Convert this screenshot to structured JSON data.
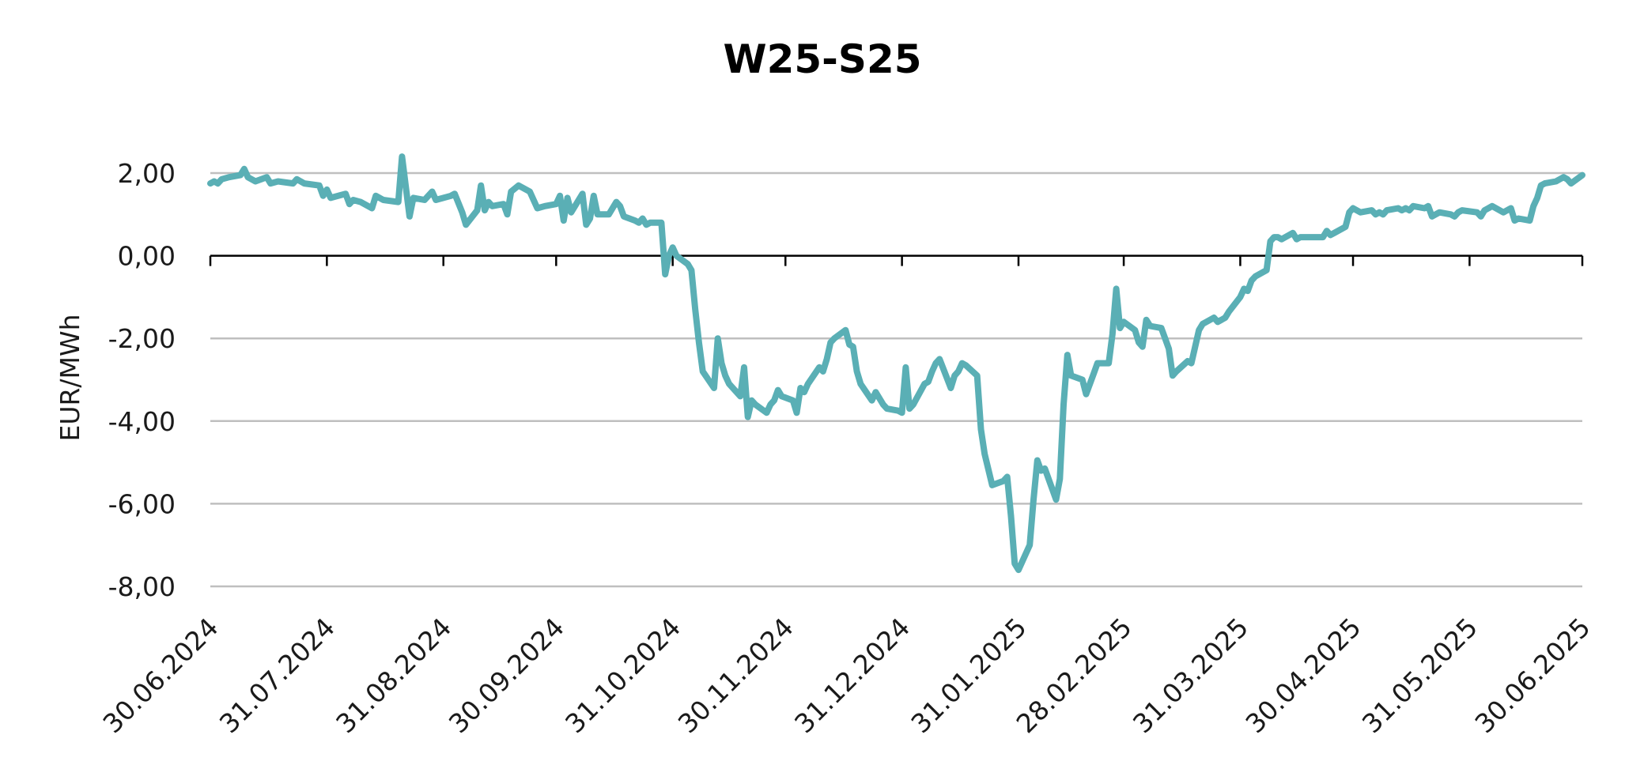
{
  "chart_data": {
    "type": "line",
    "title": "W25-S25",
    "ylabel": "EUR/MWh",
    "xlabel": "",
    "ylim": [
      -8,
      2
    ],
    "y_ticks": [
      {
        "value": 2,
        "label": "2,00"
      },
      {
        "value": 0,
        "label": "0,00"
      },
      {
        "value": -2,
        "label": "-2,00"
      },
      {
        "value": -4,
        "label": "-4,00"
      },
      {
        "value": -6,
        "label": "-6,00"
      },
      {
        "value": -8,
        "label": "-8,00"
      }
    ],
    "xlim": [
      "2024-06-30",
      "2025-06-30"
    ],
    "x_ticks": [
      {
        "value": "2024-06-30",
        "label": "30.06.2024"
      },
      {
        "value": "2024-07-31",
        "label": "31.07.2024"
      },
      {
        "value": "2024-08-31",
        "label": "31.08.2024"
      },
      {
        "value": "2024-09-30",
        "label": "30.09.2024"
      },
      {
        "value": "2024-10-31",
        "label": "31.10.2024"
      },
      {
        "value": "2024-11-30",
        "label": "30.11.2024"
      },
      {
        "value": "2024-12-31",
        "label": "31.12.2024"
      },
      {
        "value": "2025-01-31",
        "label": "31.01.2025"
      },
      {
        "value": "2025-02-28",
        "label": "28.02.2025"
      },
      {
        "value": "2025-03-31",
        "label": "31.03.2025"
      },
      {
        "value": "2025-04-30",
        "label": "30.04.2025"
      },
      {
        "value": "2025-05-31",
        "label": "31.05.2025"
      },
      {
        "value": "2025-06-30",
        "label": "30.06.2025"
      }
    ],
    "grid": true,
    "series": [
      {
        "color": "#5aafb5",
        "points": [
          [
            "2024-06-30",
            1.75
          ],
          [
            "2024-07-01",
            1.8
          ],
          [
            "2024-07-02",
            1.75
          ],
          [
            "2024-07-03",
            1.85
          ],
          [
            "2024-07-05",
            1.9
          ],
          [
            "2024-07-08",
            1.95
          ],
          [
            "2024-07-09",
            2.1
          ],
          [
            "2024-07-10",
            1.9
          ],
          [
            "2024-07-12",
            1.8
          ],
          [
            "2024-07-15",
            1.9
          ],
          [
            "2024-07-16",
            1.75
          ],
          [
            "2024-07-18",
            1.8
          ],
          [
            "2024-07-22",
            1.75
          ],
          [
            "2024-07-23",
            1.85
          ],
          [
            "2024-07-25",
            1.75
          ],
          [
            "2024-07-29",
            1.7
          ],
          [
            "2024-07-30",
            1.45
          ],
          [
            "2024-07-31",
            1.6
          ],
          [
            "2024-08-01",
            1.4
          ],
          [
            "2024-08-05",
            1.5
          ],
          [
            "2024-08-06",
            1.25
          ],
          [
            "2024-08-07",
            1.35
          ],
          [
            "2024-08-09",
            1.3
          ],
          [
            "2024-08-12",
            1.15
          ],
          [
            "2024-08-13",
            1.45
          ],
          [
            "2024-08-15",
            1.35
          ],
          [
            "2024-08-19",
            1.3
          ],
          [
            "2024-08-20",
            2.4
          ],
          [
            "2024-08-22",
            0.95
          ],
          [
            "2024-08-23",
            1.4
          ],
          [
            "2024-08-26",
            1.35
          ],
          [
            "2024-08-28",
            1.55
          ],
          [
            "2024-08-29",
            1.35
          ],
          [
            "2024-09-02",
            1.45
          ],
          [
            "2024-09-03",
            1.5
          ],
          [
            "2024-09-05",
            1.05
          ],
          [
            "2024-09-06",
            0.75
          ],
          [
            "2024-09-09",
            1.1
          ],
          [
            "2024-09-10",
            1.7
          ],
          [
            "2024-09-11",
            1.1
          ],
          [
            "2024-09-12",
            1.3
          ],
          [
            "2024-09-13",
            1.2
          ],
          [
            "2024-09-16",
            1.25
          ],
          [
            "2024-09-17",
            1.0
          ],
          [
            "2024-09-18",
            1.55
          ],
          [
            "2024-09-20",
            1.7
          ],
          [
            "2024-09-23",
            1.55
          ],
          [
            "2024-09-25",
            1.15
          ],
          [
            "2024-09-27",
            1.2
          ],
          [
            "2024-09-30",
            1.25
          ],
          [
            "2024-10-01",
            1.45
          ],
          [
            "2024-10-02",
            0.85
          ],
          [
            "2024-10-03",
            1.4
          ],
          [
            "2024-10-04",
            1.05
          ],
          [
            "2024-10-07",
            1.5
          ],
          [
            "2024-10-08",
            0.75
          ],
          [
            "2024-10-09",
            0.9
          ],
          [
            "2024-10-10",
            1.45
          ],
          [
            "2024-10-11",
            1.0
          ],
          [
            "2024-10-14",
            1.0
          ],
          [
            "2024-10-16",
            1.3
          ],
          [
            "2024-10-17",
            1.2
          ],
          [
            "2024-10-18",
            0.95
          ],
          [
            "2024-10-21",
            0.85
          ],
          [
            "2024-10-22",
            0.8
          ],
          [
            "2024-10-23",
            0.9
          ],
          [
            "2024-10-24",
            0.75
          ],
          [
            "2024-10-25",
            0.8
          ],
          [
            "2024-10-28",
            0.8
          ],
          [
            "2024-10-29",
            -0.45
          ],
          [
            "2024-10-30",
            0.0
          ],
          [
            "2024-10-31",
            0.2
          ],
          [
            "2024-11-01",
            0.0
          ],
          [
            "2024-11-04",
            -0.2
          ],
          [
            "2024-11-05",
            -0.35
          ],
          [
            "2024-11-06",
            -1.3
          ],
          [
            "2024-11-07",
            -2.1
          ],
          [
            "2024-11-08",
            -2.8
          ],
          [
            "2024-11-11",
            -3.2
          ],
          [
            "2024-11-12",
            -2.0
          ],
          [
            "2024-11-13",
            -2.6
          ],
          [
            "2024-11-14",
            -2.9
          ],
          [
            "2024-11-15",
            -3.1
          ],
          [
            "2024-11-18",
            -3.4
          ],
          [
            "2024-11-19",
            -2.7
          ],
          [
            "2024-11-20",
            -3.9
          ],
          [
            "2024-11-21",
            -3.5
          ],
          [
            "2024-11-22",
            -3.6
          ],
          [
            "2024-11-25",
            -3.8
          ],
          [
            "2024-11-26",
            -3.6
          ],
          [
            "2024-11-27",
            -3.5
          ],
          [
            "2024-11-28",
            -3.25
          ],
          [
            "2024-11-29",
            -3.4
          ],
          [
            "2024-12-02",
            -3.5
          ],
          [
            "2024-12-03",
            -3.8
          ],
          [
            "2024-12-04",
            -3.2
          ],
          [
            "2024-12-05",
            -3.3
          ],
          [
            "2024-12-06",
            -3.1
          ],
          [
            "2024-12-09",
            -2.7
          ],
          [
            "2024-12-10",
            -2.8
          ],
          [
            "2024-12-11",
            -2.5
          ],
          [
            "2024-12-12",
            -2.1
          ],
          [
            "2024-12-13",
            -2.0
          ],
          [
            "2024-12-16",
            -1.8
          ],
          [
            "2024-12-17",
            -2.15
          ],
          [
            "2024-12-18",
            -2.2
          ],
          [
            "2024-12-19",
            -2.8
          ],
          [
            "2024-12-20",
            -3.1
          ],
          [
            "2024-12-23",
            -3.5
          ],
          [
            "2024-12-24",
            -3.3
          ],
          [
            "2024-12-26",
            -3.6
          ],
          [
            "2024-12-27",
            -3.7
          ],
          [
            "2024-12-30",
            -3.75
          ],
          [
            "2024-12-31",
            -3.8
          ],
          [
            "2025-01-01",
            -2.7
          ],
          [
            "2025-01-02",
            -3.7
          ],
          [
            "2025-01-03",
            -3.6
          ],
          [
            "2025-01-06",
            -3.1
          ],
          [
            "2025-01-07",
            -3.05
          ],
          [
            "2025-01-08",
            -2.8
          ],
          [
            "2025-01-09",
            -2.6
          ],
          [
            "2025-01-10",
            -2.5
          ],
          [
            "2025-01-13",
            -3.2
          ],
          [
            "2025-01-14",
            -2.9
          ],
          [
            "2025-01-15",
            -2.8
          ],
          [
            "2025-01-16",
            -2.6
          ],
          [
            "2025-01-17",
            -2.65
          ],
          [
            "2025-01-20",
            -2.9
          ],
          [
            "2025-01-21",
            -4.2
          ],
          [
            "2025-01-22",
            -4.8
          ],
          [
            "2025-01-24",
            -5.55
          ],
          [
            "2025-01-27",
            -5.45
          ],
          [
            "2025-01-28",
            -5.35
          ],
          [
            "2025-01-29",
            -6.3
          ],
          [
            "2025-01-30",
            -7.45
          ],
          [
            "2025-01-31",
            -7.6
          ],
          [
            "2025-02-03",
            -7.0
          ],
          [
            "2025-02-04",
            -5.9
          ],
          [
            "2025-02-05",
            -4.95
          ],
          [
            "2025-02-06",
            -5.2
          ],
          [
            "2025-02-07",
            -5.15
          ],
          [
            "2025-02-10",
            -5.9
          ],
          [
            "2025-02-11",
            -5.4
          ],
          [
            "2025-02-12",
            -3.6
          ],
          [
            "2025-02-13",
            -2.4
          ],
          [
            "2025-02-14",
            -2.9
          ],
          [
            "2025-02-17",
            -3.0
          ],
          [
            "2025-02-18",
            -3.35
          ],
          [
            "2025-02-19",
            -3.1
          ],
          [
            "2025-02-20",
            -2.85
          ],
          [
            "2025-02-21",
            -2.6
          ],
          [
            "2025-02-24",
            -2.6
          ],
          [
            "2025-02-25",
            -1.9
          ],
          [
            "2025-02-26",
            -0.8
          ],
          [
            "2025-02-27",
            -1.75
          ],
          [
            "2025-02-28",
            -1.6
          ],
          [
            "2025-03-03",
            -1.8
          ],
          [
            "2025-03-04",
            -2.1
          ],
          [
            "2025-03-05",
            -2.2
          ],
          [
            "2025-03-06",
            -1.55
          ],
          [
            "2025-03-07",
            -1.7
          ],
          [
            "2025-03-10",
            -1.75
          ],
          [
            "2025-03-11",
            -2.0
          ],
          [
            "2025-03-12",
            -2.25
          ],
          [
            "2025-03-13",
            -2.9
          ],
          [
            "2025-03-14",
            -2.8
          ],
          [
            "2025-03-17",
            -2.55
          ],
          [
            "2025-03-18",
            -2.6
          ],
          [
            "2025-03-19",
            -2.2
          ],
          [
            "2025-03-20",
            -1.8
          ],
          [
            "2025-03-21",
            -1.65
          ],
          [
            "2025-03-24",
            -1.5
          ],
          [
            "2025-03-25",
            -1.6
          ],
          [
            "2025-03-26",
            -1.55
          ],
          [
            "2025-03-27",
            -1.5
          ],
          [
            "2025-03-28",
            -1.35
          ],
          [
            "2025-03-31",
            -1.0
          ],
          [
            "2025-04-01",
            -0.8
          ],
          [
            "2025-04-02",
            -0.85
          ],
          [
            "2025-04-03",
            -0.6
          ],
          [
            "2025-04-04",
            -0.5
          ],
          [
            "2025-04-07",
            -0.35
          ],
          [
            "2025-04-08",
            0.35
          ],
          [
            "2025-04-09",
            0.45
          ],
          [
            "2025-04-10",
            0.45
          ],
          [
            "2025-04-11",
            0.4
          ],
          [
            "2025-04-14",
            0.55
          ],
          [
            "2025-04-15",
            0.4
          ],
          [
            "2025-04-16",
            0.45
          ],
          [
            "2025-04-17",
            0.45
          ],
          [
            "2025-04-22",
            0.45
          ],
          [
            "2025-04-23",
            0.6
          ],
          [
            "2025-04-24",
            0.5
          ],
          [
            "2025-04-25",
            0.55
          ],
          [
            "2025-04-28",
            0.7
          ],
          [
            "2025-04-29",
            1.05
          ],
          [
            "2025-04-30",
            1.15
          ],
          [
            "2025-05-02",
            1.05
          ],
          [
            "2025-05-05",
            1.1
          ],
          [
            "2025-05-06",
            1.0
          ],
          [
            "2025-05-07",
            1.05
          ],
          [
            "2025-05-08",
            1.0
          ],
          [
            "2025-05-09",
            1.1
          ],
          [
            "2025-05-12",
            1.15
          ],
          [
            "2025-05-13",
            1.1
          ],
          [
            "2025-05-14",
            1.15
          ],
          [
            "2025-05-15",
            1.1
          ],
          [
            "2025-05-16",
            1.2
          ],
          [
            "2025-05-19",
            1.15
          ],
          [
            "2025-05-20",
            1.2
          ],
          [
            "2025-05-21",
            0.95
          ],
          [
            "2025-05-22",
            1.0
          ],
          [
            "2025-05-23",
            1.05
          ],
          [
            "2025-05-26",
            1.0
          ],
          [
            "2025-05-27",
            0.95
          ],
          [
            "2025-05-28",
            1.05
          ],
          [
            "2025-05-29",
            1.1
          ],
          [
            "2025-06-02",
            1.05
          ],
          [
            "2025-06-03",
            0.95
          ],
          [
            "2025-06-04",
            1.1
          ],
          [
            "2025-06-05",
            1.15
          ],
          [
            "2025-06-06",
            1.2
          ],
          [
            "2025-06-09",
            1.05
          ],
          [
            "2025-06-10",
            1.1
          ],
          [
            "2025-06-11",
            1.15
          ],
          [
            "2025-06-12",
            0.85
          ],
          [
            "2025-06-13",
            0.9
          ],
          [
            "2025-06-16",
            0.85
          ],
          [
            "2025-06-17",
            1.2
          ],
          [
            "2025-06-18",
            1.4
          ],
          [
            "2025-06-19",
            1.7
          ],
          [
            "2025-06-20",
            1.75
          ],
          [
            "2025-06-23",
            1.8
          ],
          [
            "2025-06-24",
            1.85
          ],
          [
            "2025-06-25",
            1.9
          ],
          [
            "2025-06-26",
            1.85
          ],
          [
            "2025-06-27",
            1.75
          ],
          [
            "2025-06-30",
            1.95
          ]
        ]
      }
    ]
  }
}
